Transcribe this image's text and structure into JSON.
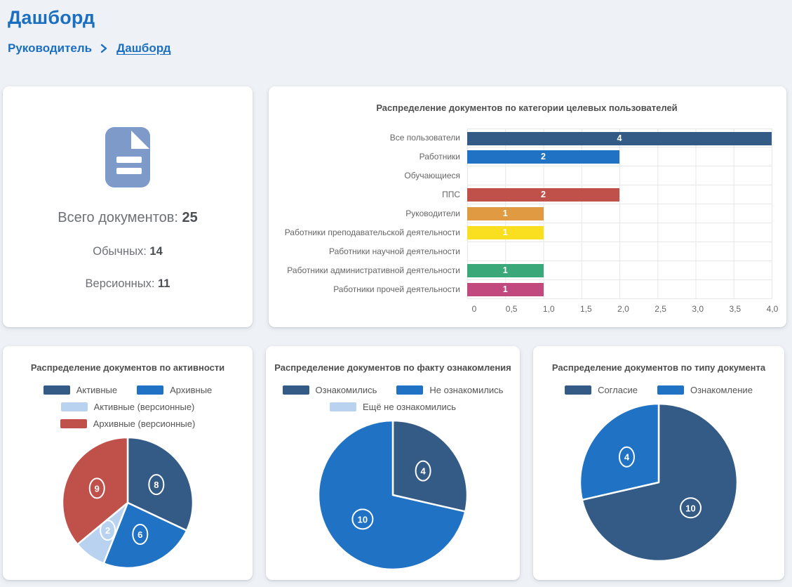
{
  "header": {
    "title": "Дашборд",
    "breadcrumb": {
      "root": "Руководитель",
      "current": "Дашборд"
    }
  },
  "summary": {
    "icon": "document-icon",
    "icon_color": "#7e9ac8",
    "total_label": "Всего документов:",
    "total_value": "25",
    "regular_label": "Обычных:",
    "regular_value": "14",
    "versioned_label": "Версионных:",
    "versioned_value": "11"
  },
  "colors": {
    "accent_blue": "#1b6fc1",
    "page_background": "#eef1f5",
    "dark_blue": "#345b85",
    "blue": "#1f72c4",
    "light_blue": "#b8d2f0",
    "red": "#c0504a",
    "orange": "#e09a41",
    "yellow": "#f9df20",
    "green": "#3aa878",
    "pink": "#c2497e"
  },
  "chart_data": [
    {
      "type": "bar",
      "orientation": "horizontal",
      "title": "Распределение документов по категории целевых пользователей",
      "categories": [
        "Все пользователи",
        "Работники",
        "Обучающиеся",
        "ППС",
        "Руководители",
        "Работники преподавательской деятельности",
        "Работники научной деятельности",
        "Работники административной деятельности",
        "Работники прочей деятельности"
      ],
      "values": [
        4,
        2,
        0,
        2,
        1,
        1,
        0,
        1,
        1
      ],
      "bar_colors": [
        "#345b85",
        "#1f72c4",
        "#b8d2f0",
        "#c0504a",
        "#e09a41",
        "#f9df20",
        "#b8d2f0",
        "#3aa878",
        "#c2497e"
      ],
      "xlim": [
        0,
        4
      ],
      "xticks": [
        "0",
        "0,5",
        "1,0",
        "1,5",
        "2,0",
        "2,5",
        "3,0",
        "3,5",
        "4,0"
      ],
      "grid": true,
      "value_labels": "white, centered in bar"
    },
    {
      "type": "pie",
      "title": "Распределение документов по активности",
      "labels": [
        "Активные",
        "Архивные",
        "Активные (версионные)",
        "Архивные (версионные)"
      ],
      "values": [
        8,
        6,
        2,
        9
      ],
      "colors": [
        "#345b85",
        "#1f72c4",
        "#b8d2f0",
        "#c0504a"
      ],
      "legend_rows": [
        [
          0,
          1
        ],
        [
          2
        ],
        [
          3
        ]
      ],
      "start_angle_deg_from_top": 0,
      "direction": "clockwise"
    },
    {
      "type": "pie",
      "title": "Распределение документов по факту ознакомления",
      "labels": [
        "Ознакомились",
        "Не ознакомились",
        "Ещё не ознакомились"
      ],
      "values": [
        4,
        10,
        0
      ],
      "colors": [
        "#345b85",
        "#1f72c4",
        "#b8d2f0"
      ],
      "legend_rows": [
        [
          0,
          1
        ],
        [
          2
        ]
      ],
      "start_angle_deg_from_top": 0,
      "direction": "clockwise"
    },
    {
      "type": "pie",
      "title": "Распределение документов по типу документа",
      "labels": [
        "Согласие",
        "Ознакомление"
      ],
      "values": [
        10,
        4
      ],
      "colors": [
        "#345b85",
        "#1f72c4"
      ],
      "legend_rows": [
        [
          0,
          1
        ]
      ],
      "start_angle_deg_from_top": 0,
      "direction": "clockwise"
    }
  ]
}
